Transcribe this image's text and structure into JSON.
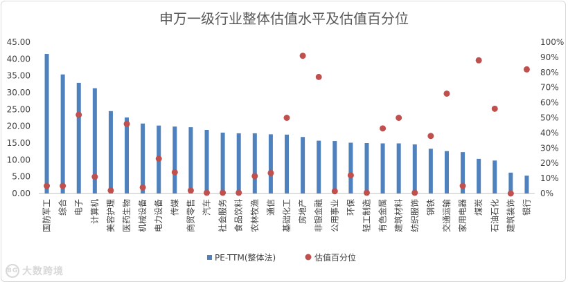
{
  "chart_data": {
    "type": "bar",
    "title": "申万一级行业整体估值水平及估值百分位",
    "categories": [
      "国防军工",
      "综合",
      "电子",
      "计算机",
      "美容护理",
      "医药生物",
      "机械设备",
      "电力设备",
      "传媒",
      "商贸零售",
      "汽车",
      "社会服务",
      "食品饮料",
      "农林牧渔",
      "通信",
      "基础化工",
      "房地产",
      "非银金融",
      "公用事业",
      "环保",
      "轻工制造",
      "有色金属",
      "建筑材料",
      "纺织服饰",
      "钢铁",
      "交通运输",
      "家用电器",
      "煤炭",
      "石油石化",
      "建筑装饰",
      "银行"
    ],
    "series": [
      {
        "name": "PE-TTM(整体法)",
        "type": "bar",
        "axis": "left",
        "color": "#4f81bd",
        "values": [
          41.5,
          35.4,
          32.9,
          31.3,
          24.5,
          22.6,
          20.8,
          20.2,
          19.9,
          19.7,
          18.9,
          18.1,
          17.9,
          17.9,
          17.6,
          17.5,
          16.8,
          15.7,
          15.6,
          15.1,
          15.0,
          14.9,
          14.9,
          14.6,
          13.3,
          12.6,
          12.3,
          10.3,
          9.8,
          6.2,
          5.3
        ]
      },
      {
        "name": "估值百分位",
        "type": "scatter",
        "axis": "right",
        "color": "#c0504d",
        "values": [
          5,
          5,
          52,
          11,
          2,
          46,
          4,
          23,
          14,
          2,
          0.5,
          0.5,
          0.5,
          11.5,
          13.5,
          50,
          91,
          77,
          1.5,
          12,
          0.5,
          43,
          50,
          0.5,
          38,
          66,
          5,
          88,
          56,
          0,
          82
        ]
      }
    ],
    "left_axis": {
      "ticks": [
        "0.00",
        "5.00",
        "10.00",
        "15.00",
        "20.00",
        "25.00",
        "30.00",
        "35.00",
        "40.00",
        "45.00"
      ],
      "ylim": [
        0,
        45
      ]
    },
    "right_axis": {
      "ticks": [
        "0%",
        "10%",
        "20%",
        "30%",
        "40%",
        "50%",
        "60%",
        "70%",
        "80%",
        "90%",
        "100%"
      ],
      "ylim": [
        0,
        100
      ]
    },
    "legend": {
      "position": "bottom",
      "entries": [
        "PE-TTM(整体法)",
        "估值百分位"
      ]
    },
    "grid": false
  },
  "watermark": {
    "logo_text": "BG",
    "text": "大数跨境"
  }
}
